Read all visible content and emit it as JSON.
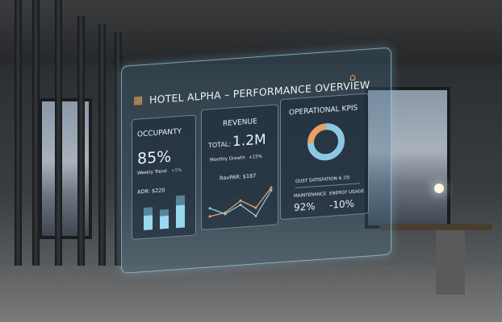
{
  "dashboard": {
    "title": "HOTEL ALPHA – PERFORMANCE OVERVIEW",
    "occupancy": {
      "label": "OCCUPANTY",
      "value": "85%",
      "trend_label": "Weekly Trend",
      "trend_value": "+5%",
      "adr": "ADR: $220",
      "bars": [
        0.45,
        0.4,
        0.7
      ],
      "bar_tops": [
        0.25,
        0.2,
        0.35
      ]
    },
    "revenue": {
      "label": "REVENUE",
      "total_label": "TOTAL:",
      "total_value": "1.2M",
      "growth_label": "Monthly Growth",
      "growth_value": "+15%",
      "revpar": "RavPAR: $187",
      "line_orange": [
        0.1,
        0.2,
        0.6,
        0.3,
        1.0
      ],
      "line_blue": [
        0.4,
        0.15,
        0.45,
        0.0,
        0.9
      ]
    },
    "kpis": {
      "label": "OPERATIONAL KPIS",
      "donut": [
        {
          "share": 0.75,
          "color": "#8cc8e2"
        },
        {
          "share": 0.25,
          "color": "#e8a068"
        }
      ],
      "satisfaction": "GUST SATISFATION 4.7/5",
      "maintenance_label": "MAINTENANCE",
      "maintenance_value": "92%",
      "energy_label": "ENERGY USAGE",
      "energy_value": "-10%"
    },
    "icons": [
      "hotel-icon",
      "building-icon"
    ]
  },
  "colors": {
    "accent_blue": "#8cc8e2",
    "accent_orange": "#e8a068"
  }
}
